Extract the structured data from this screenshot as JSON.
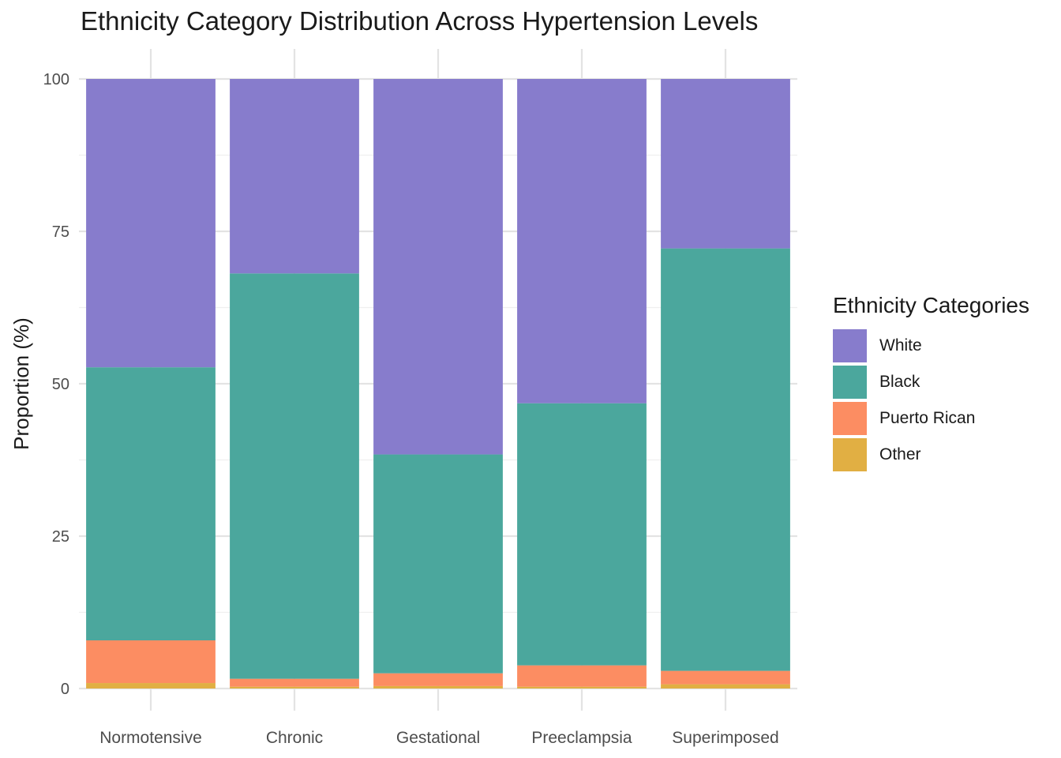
{
  "chart_data": {
    "type": "bar",
    "stacked": true,
    "title": "Ethnicity Category Distribution Across Hypertension Levels",
    "xlabel": "",
    "ylabel": "Proportion (%)",
    "ylim": [
      0,
      100
    ],
    "yticks": [
      0,
      25,
      50,
      75,
      100
    ],
    "grid": true,
    "legend_position": "right",
    "legend_title": "Ethnicity Categories",
    "categories": [
      "Normotensive",
      "Chronic",
      "Gestational",
      "Preeclampsia",
      "Superimposed"
    ],
    "series": [
      {
        "name": "Other",
        "color": "#E1AF43",
        "values": [
          0.9,
          0.3,
          0.4,
          0.3,
          0.7
        ]
      },
      {
        "name": "Puerto Rican",
        "color": "#FC8D62",
        "values": [
          7.0,
          1.3,
          2.1,
          3.5,
          2.2
        ]
      },
      {
        "name": "Black",
        "color": "#4BA79D",
        "values": [
          44.8,
          66.5,
          35.9,
          43.0,
          69.3
        ]
      },
      {
        "name": "White",
        "color": "#877CCC",
        "values": [
          47.3,
          31.9,
          61.6,
          53.2,
          27.8
        ]
      }
    ],
    "legend_order": [
      "White",
      "Black",
      "Puerto Rican",
      "Other"
    ]
  }
}
